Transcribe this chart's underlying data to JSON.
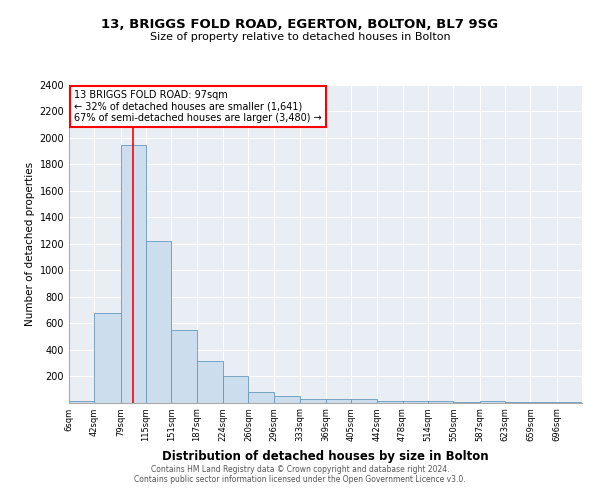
{
  "title1": "13, BRIGGS FOLD ROAD, EGERTON, BOLTON, BL7 9SG",
  "title2": "Size of property relative to detached houses in Bolton",
  "xlabel": "Distribution of detached houses by size in Bolton",
  "ylabel": "Number of detached properties",
  "annotation_line1": "13 BRIGGS FOLD ROAD: 97sqm",
  "annotation_line2": "← 32% of detached houses are smaller (1,641)",
  "annotation_line3": "67% of semi-detached houses are larger (3,480) →",
  "bar_color": "#ccdded",
  "bar_edge_color": "#6699bb",
  "red_line_x": 97,
  "bins": [
    6,
    42,
    79,
    115,
    151,
    187,
    224,
    260,
    296,
    333,
    369,
    405,
    442,
    478,
    514,
    550,
    587,
    623,
    659,
    696,
    732
  ],
  "counts": [
    10,
    680,
    1950,
    1220,
    550,
    310,
    200,
    80,
    50,
    30,
    25,
    25,
    15,
    10,
    10,
    5,
    15,
    5,
    5,
    5
  ],
  "ylim": [
    0,
    2400
  ],
  "yticks": [
    0,
    200,
    400,
    600,
    800,
    1000,
    1200,
    1400,
    1600,
    1800,
    2000,
    2200,
    2400
  ],
  "background_color": "#e8eef4",
  "footer1": "Contains HM Land Registry data © Crown copyright and database right 2024.",
  "footer2": "Contains public sector information licensed under the Open Government Licence v3.0."
}
